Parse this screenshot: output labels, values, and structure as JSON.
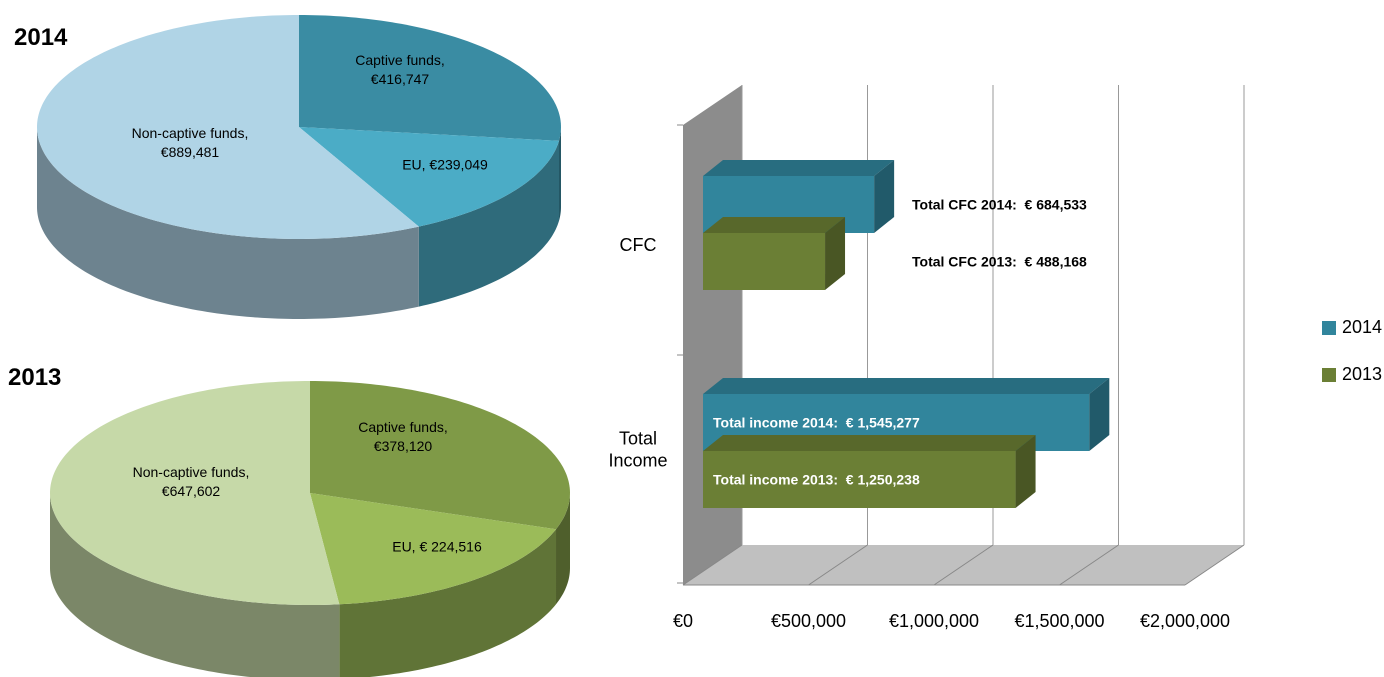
{
  "chart_data": [
    {
      "type": "pie",
      "title": "2014",
      "values": [
        416747,
        239049,
        889481
      ],
      "value_labels": [
        "Captive funds, €416,747",
        "EU, €239,049",
        "Non-captive funds, €889,481"
      ],
      "colors": [
        "#3a8ca3",
        "#4bacc6",
        "#b0d4e6"
      ]
    },
    {
      "type": "pie",
      "title": "2013",
      "values": [
        378120,
        224516,
        647602
      ],
      "value_labels": [
        "Captive funds, €378,120",
        "EU, € 224,516",
        "Non-captive funds, €647,602"
      ],
      "colors": [
        "#7f9a47",
        "#9bbb59",
        "#c6d9a8"
      ]
    },
    {
      "type": "bar",
      "orientation": "horizontal",
      "categories": [
        "CFC",
        "Total Income"
      ],
      "series": [
        {
          "name": "2014",
          "color": "#31859c",
          "values": [
            684533,
            1545277
          ],
          "value_labels": [
            "Total CFC 2014:  € 684,533",
            "Total income 2014:  € 1,545,277"
          ]
        },
        {
          "name": "2013",
          "color": "#6b7f35",
          "values": [
            488168,
            1250238
          ],
          "value_labels": [
            "Total CFC 2013:  € 488,168",
            "Total income 2013:  € 1,250,238"
          ]
        }
      ],
      "xlim": [
        0,
        2000000
      ],
      "xticks": [
        {
          "value": 0,
          "label": "€0"
        },
        {
          "value": 500000,
          "label": "€500,000"
        },
        {
          "value": 1000000,
          "label": "€1,000,000"
        },
        {
          "value": 1500000,
          "label": "€1,500,000"
        },
        {
          "value": 2000000,
          "label": "€2,000,000"
        }
      ],
      "grid": true,
      "legend": "right"
    }
  ]
}
